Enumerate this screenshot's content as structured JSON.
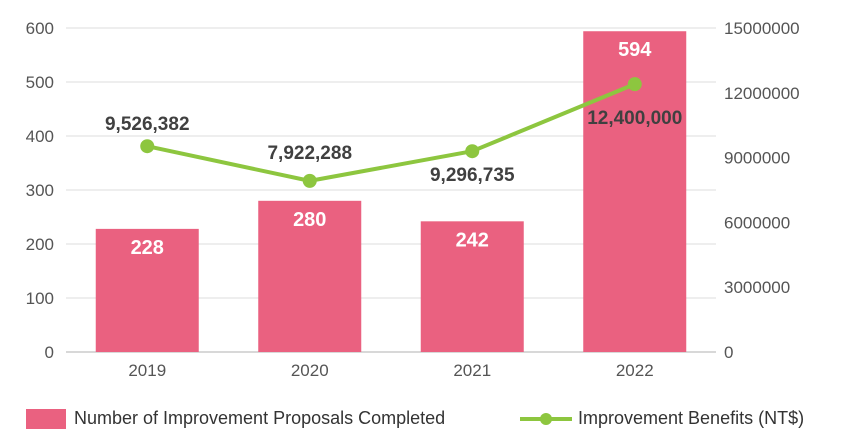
{
  "chart_data": {
    "type": "bar",
    "categories": [
      "2019",
      "2020",
      "2021",
      "2022"
    ],
    "series": [
      {
        "name": "Number of Improvement Proposals Completed",
        "type": "bar",
        "axis": "left",
        "color": "#ea6180",
        "values": [
          228,
          280,
          242,
          594
        ],
        "data_labels": [
          "228",
          "280",
          "242",
          "594"
        ]
      },
      {
        "name": "Improvement Benefits (NT$)",
        "type": "line",
        "axis": "right",
        "color": "#8dc63f",
        "values": [
          9526382,
          7922288,
          9296735,
          12400000
        ],
        "data_labels": [
          "9,526,382",
          "7,922,288",
          "9,296,735",
          "12,400,000"
        ]
      }
    ],
    "y_left": {
      "ylim": [
        0,
        600
      ],
      "ticks": [
        "0",
        "100",
        "200",
        "300",
        "400",
        "500",
        "600"
      ]
    },
    "y_right": {
      "ylim": [
        0,
        15000000
      ],
      "ticks": [
        "0",
        "3000000",
        "6000000",
        "9000000",
        "12000000",
        "15000000"
      ]
    },
    "grid": true,
    "legend_position": "bottom"
  }
}
